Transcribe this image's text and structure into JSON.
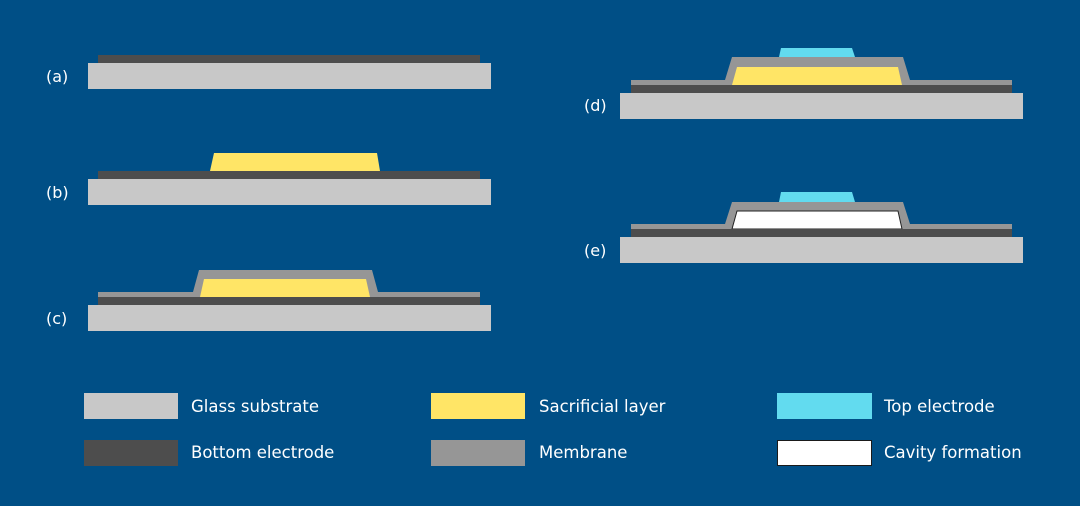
{
  "colors": {
    "background": "#004f86",
    "glass_substrate": "#c8c8c8",
    "bottom_electrode": "#4d4d4d",
    "sacrificial_layer": "#ffe566",
    "membrane": "#969696",
    "top_electrode": "#62dbef",
    "cavity": "#ffffff"
  },
  "steps": [
    {
      "label": "(a)"
    },
    {
      "label": "(b)"
    },
    {
      "label": "(c)"
    },
    {
      "label": "(d)"
    },
    {
      "label": "(e)"
    }
  ],
  "legend": [
    {
      "label": "Glass substrate",
      "color": "#c8c8c8"
    },
    {
      "label": "Sacrificial layer",
      "color": "#ffe566"
    },
    {
      "label": "Top electrode",
      "color": "#62dbef"
    },
    {
      "label": "Bottom electrode",
      "color": "#4d4d4d"
    },
    {
      "label": "Membrane",
      "color": "#969696"
    },
    {
      "label": "Cavity formation",
      "color": "#ffffff"
    }
  ]
}
